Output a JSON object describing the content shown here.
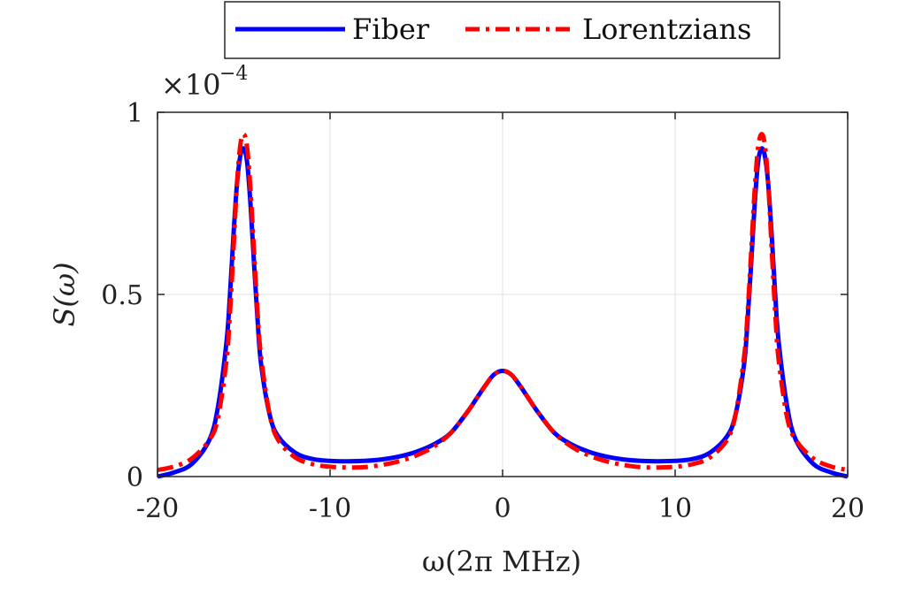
{
  "chart_data": {
    "type": "line",
    "title": "",
    "xlabel": "ω(2π MHz)",
    "ylabel": "S(ω)",
    "y_multiplier": {
      "base": "×10",
      "exponent": "−4"
    },
    "xlim": [
      -20,
      20
    ],
    "ylim": [
      0,
      1
    ],
    "x_ticks": [
      -20,
      -10,
      0,
      10,
      20
    ],
    "x_tick_labels": [
      "-20",
      "-10",
      "0",
      "10",
      "20"
    ],
    "y_ticks": [
      0,
      0.5,
      1
    ],
    "y_tick_labels": [
      "0",
      "0.5",
      "1"
    ],
    "grid": true,
    "legend_position": "top-center",
    "x": [
      -20,
      -19,
      -18,
      -17,
      -16.5,
      -16,
      -15.8,
      -15.6,
      -15.4,
      -15.2,
      -15,
      -14.8,
      -14.6,
      -14.4,
      -14.2,
      -14,
      -13.5,
      -13,
      -12,
      -11,
      -10,
      -9,
      -8,
      -7,
      -6,
      -5,
      -4,
      -3,
      -2,
      -1.5,
      -1,
      -0.5,
      0,
      0.5,
      1,
      1.5,
      2,
      3,
      4,
      5,
      6,
      7,
      8,
      9,
      10,
      11,
      12,
      13,
      13.5,
      14,
      14.2,
      14.4,
      14.6,
      14.8,
      15,
      15.2,
      15.4,
      15.6,
      15.8,
      16,
      16.5,
      17,
      18,
      19,
      20
    ],
    "series": [
      {
        "name": "Fiber",
        "color": "#0000ff",
        "style": "solid",
        "values": [
          0.0,
          0.012,
          0.035,
          0.1,
          0.19,
          0.37,
          0.5,
          0.66,
          0.8,
          0.88,
          0.9,
          0.86,
          0.74,
          0.58,
          0.43,
          0.31,
          0.17,
          0.11,
          0.065,
          0.048,
          0.043,
          0.042,
          0.043,
          0.047,
          0.055,
          0.068,
          0.088,
          0.12,
          0.18,
          0.215,
          0.25,
          0.28,
          0.29,
          0.28,
          0.25,
          0.215,
          0.18,
          0.12,
          0.088,
          0.068,
          0.055,
          0.047,
          0.043,
          0.042,
          0.043,
          0.048,
          0.065,
          0.11,
          0.17,
          0.31,
          0.43,
          0.58,
          0.74,
          0.86,
          0.9,
          0.88,
          0.8,
          0.66,
          0.5,
          0.37,
          0.19,
          0.1,
          0.035,
          0.012,
          0.0
        ]
      },
      {
        "name": "Lorentzians",
        "color": "#ff0000",
        "style": "dash-dot",
        "values": [
          0.018,
          0.028,
          0.05,
          0.1,
          0.16,
          0.32,
          0.45,
          0.62,
          0.8,
          0.91,
          0.94,
          0.9,
          0.78,
          0.61,
          0.45,
          0.33,
          0.17,
          0.1,
          0.052,
          0.034,
          0.027,
          0.025,
          0.026,
          0.032,
          0.042,
          0.058,
          0.082,
          0.12,
          0.18,
          0.215,
          0.25,
          0.28,
          0.29,
          0.28,
          0.25,
          0.215,
          0.18,
          0.12,
          0.082,
          0.058,
          0.042,
          0.032,
          0.026,
          0.025,
          0.027,
          0.034,
          0.052,
          0.1,
          0.17,
          0.33,
          0.45,
          0.61,
          0.78,
          0.9,
          0.94,
          0.91,
          0.8,
          0.62,
          0.45,
          0.32,
          0.16,
          0.1,
          0.05,
          0.028,
          0.018
        ]
      }
    ]
  }
}
